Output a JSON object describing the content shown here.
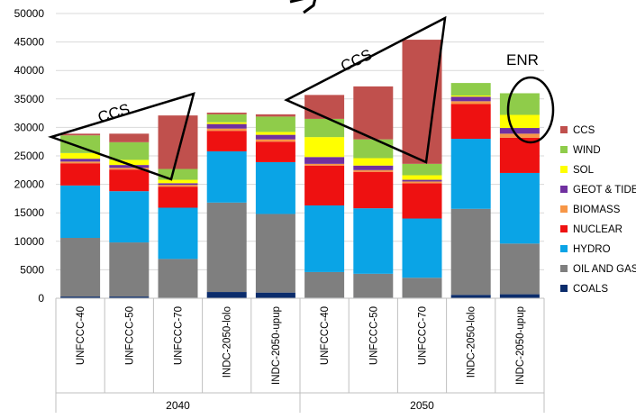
{
  "chart_data": {
    "type": "bar",
    "stacked": true,
    "ylim": [
      0,
      50000
    ],
    "yticks": [
      0,
      5000,
      10000,
      15000,
      20000,
      25000,
      30000,
      35000,
      40000,
      45000,
      50000
    ],
    "grid": true,
    "legend_position": "right",
    "categories": [
      "UNFCCC-40",
      "UNFCCC-50",
      "UNFCCC-70",
      "INDC-2050-lolo",
      "INDC-2050-upup",
      "UNFCCC-40",
      "UNFCCC-50",
      "UNFCCC-70",
      "INDC-2050-lolo",
      "INDC-2050-upup"
    ],
    "groups": [
      {
        "label": "2040",
        "start": 0,
        "end": 4
      },
      {
        "label": "2050",
        "start": 5,
        "end": 9
      }
    ],
    "series": [
      {
        "name": "COALS",
        "color": "#0b2c6b",
        "values": [
          300,
          300,
          100,
          1100,
          1000,
          100,
          100,
          100,
          600,
          700
        ]
      },
      {
        "name": "OIL AND GAS",
        "color": "#7f7f7f",
        "values": [
          10300,
          9500,
          6800,
          15700,
          13800,
          4500,
          4200,
          3500,
          15100,
          8900
        ]
      },
      {
        "name": "HYDRO",
        "color": "#0aa4e6",
        "values": [
          9200,
          9000,
          9000,
          9000,
          9100,
          11700,
          11500,
          10400,
          12300,
          12400
        ]
      },
      {
        "name": "NUCLEAR",
        "color": "#ee1111",
        "values": [
          3900,
          3800,
          3700,
          3600,
          3600,
          7000,
          6400,
          6200,
          6100,
          6200
        ]
      },
      {
        "name": "BIOMASS",
        "color": "#f79646",
        "values": [
          300,
          300,
          300,
          400,
          400,
          300,
          300,
          300,
          500,
          700
        ]
      },
      {
        "name": "GEOT & TIDE",
        "color": "#7030a0",
        "values": [
          500,
          500,
          300,
          800,
          800,
          1200,
          800,
          300,
          800,
          1000
        ]
      },
      {
        "name": "SOL",
        "color": "#ffff00",
        "values": [
          1000,
          900,
          600,
          300,
          500,
          3500,
          1300,
          800,
          200,
          2300
        ]
      },
      {
        "name": "WIND",
        "color": "#8fcc4a",
        "values": [
          3100,
          3100,
          1900,
          1400,
          2700,
          3200,
          3300,
          2000,
          2200,
          3800
        ]
      },
      {
        "name": "CCS",
        "color": "#c0504d",
        "values": [
          300,
          1500,
          9400,
          300,
          400,
          4200,
          9300,
          21800,
          0,
          0
        ]
      }
    ]
  },
  "annotations": {
    "ccs_left": "CCS",
    "ccs_right": "CCS",
    "enr": "ENR"
  }
}
